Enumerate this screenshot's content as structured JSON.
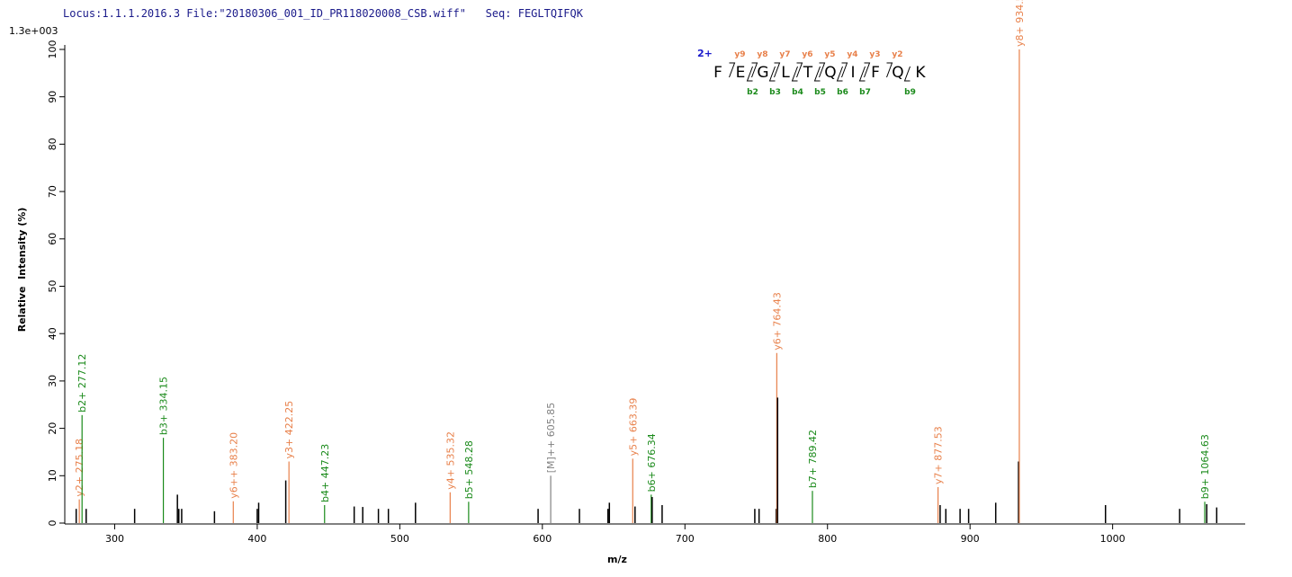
{
  "chart_data": {
    "type": "spectrum",
    "title": "Locus:1.1.1.2016.3 File:\"20180306_001_ID_PR118020008_CSB.wiff\"   Seq: FEGLTQIFQK",
    "scale_label": "1.3e+003",
    "x_label": "m/z",
    "y_label": "Relative  Intensity (%)",
    "xlim": [
      265,
      1093
    ],
    "ylim": [
      0,
      100
    ],
    "xticks": [
      300,
      400,
      500,
      600,
      700,
      800,
      900,
      1000
    ],
    "yticks": [
      0,
      10,
      20,
      30,
      40,
      50,
      60,
      70,
      80,
      90,
      100
    ],
    "peaks": [
      {
        "mz": 273,
        "intensity": 3,
        "color": "#000000"
      },
      {
        "mz": 275.18,
        "intensity": 5,
        "color": "#e8804a",
        "label": "y2+ 275.18"
      },
      {
        "mz": 277.12,
        "intensity": 22.8,
        "color": "#1a8a1a",
        "label": "b2+ 277.12"
      },
      {
        "mz": 280,
        "intensity": 3,
        "color": "#000000"
      },
      {
        "mz": 314,
        "intensity": 3,
        "color": "#000000"
      },
      {
        "mz": 334.15,
        "intensity": 18,
        "color": "#1a8a1a",
        "label": "b3+ 334.15"
      },
      {
        "mz": 344,
        "intensity": 6,
        "color": "#000000"
      },
      {
        "mz": 345,
        "intensity": 3,
        "color": "#000000"
      },
      {
        "mz": 347,
        "intensity": 3,
        "color": "#000000"
      },
      {
        "mz": 370,
        "intensity": 2.5,
        "color": "#000000"
      },
      {
        "mz": 383.2,
        "intensity": 4.6,
        "color": "#e8804a",
        "label": "y6++ 383.20"
      },
      {
        "mz": 400,
        "intensity": 3,
        "color": "#000000"
      },
      {
        "mz": 401,
        "intensity": 4.3,
        "color": "#000000"
      },
      {
        "mz": 420,
        "intensity": 9,
        "color": "#000000"
      },
      {
        "mz": 422.25,
        "intensity": 13,
        "color": "#e8804a",
        "label": "y3+ 422.25"
      },
      {
        "mz": 447.23,
        "intensity": 3.8,
        "color": "#1a8a1a",
        "label": "b4+ 447.23"
      },
      {
        "mz": 468,
        "intensity": 3.5,
        "color": "#000000"
      },
      {
        "mz": 474,
        "intensity": 3.4,
        "color": "#000000"
      },
      {
        "mz": 485,
        "intensity": 3,
        "color": "#000000"
      },
      {
        "mz": 492,
        "intensity": 3,
        "color": "#000000"
      },
      {
        "mz": 511,
        "intensity": 4.3,
        "color": "#000000"
      },
      {
        "mz": 535.32,
        "intensity": 6.5,
        "color": "#e8804a",
        "label": "y4+ 535.32"
      },
      {
        "mz": 548.28,
        "intensity": 4.5,
        "color": "#1a8a1a",
        "label": "b5+ 548.28"
      },
      {
        "mz": 597,
        "intensity": 3,
        "color": "#000000"
      },
      {
        "mz": 605.85,
        "intensity": 10,
        "color": "#808080",
        "label": "[M]++ 605.85"
      },
      {
        "mz": 626,
        "intensity": 3,
        "color": "#000000"
      },
      {
        "mz": 646,
        "intensity": 3,
        "color": "#000000"
      },
      {
        "mz": 647,
        "intensity": 4.3,
        "color": "#000000"
      },
      {
        "mz": 663.39,
        "intensity": 13.6,
        "color": "#e8804a",
        "label": "y5+ 663.39"
      },
      {
        "mz": 665,
        "intensity": 3.5,
        "color": "#000000"
      },
      {
        "mz": 676.34,
        "intensity": 6,
        "color": "#1a8a1a",
        "label": "b6+ 676.34"
      },
      {
        "mz": 677,
        "intensity": 5.5,
        "color": "#000000"
      },
      {
        "mz": 684,
        "intensity": 3.8,
        "color": "#000000"
      },
      {
        "mz": 749,
        "intensity": 3,
        "color": "#000000"
      },
      {
        "mz": 752,
        "intensity": 3,
        "color": "#000000"
      },
      {
        "mz": 764,
        "intensity": 3,
        "color": "#000000"
      },
      {
        "mz": 764.43,
        "intensity": 35.9,
        "color": "#e8804a",
        "label": "y6+ 764.43"
      },
      {
        "mz": 765,
        "intensity": 26.5,
        "color": "#000000"
      },
      {
        "mz": 789.42,
        "intensity": 6.8,
        "color": "#1a8a1a",
        "label": "b7+ 789.42"
      },
      {
        "mz": 877.53,
        "intensity": 7.6,
        "color": "#e8804a",
        "label": "y7+ 877.53"
      },
      {
        "mz": 879,
        "intensity": 3.8,
        "color": "#000000"
      },
      {
        "mz": 883,
        "intensity": 3,
        "color": "#000000"
      },
      {
        "mz": 893,
        "intensity": 3,
        "color": "#000000"
      },
      {
        "mz": 899,
        "intensity": 3,
        "color": "#000000"
      },
      {
        "mz": 918,
        "intensity": 4.3,
        "color": "#000000"
      },
      {
        "mz": 934,
        "intensity": 13,
        "color": "#000000"
      },
      {
        "mz": 934.55,
        "intensity": 100,
        "color": "#e8804a",
        "label": "y8+ 934.55"
      },
      {
        "mz": 995,
        "intensity": 3.8,
        "color": "#000000"
      },
      {
        "mz": 1047,
        "intensity": 3,
        "color": "#000000"
      },
      {
        "mz": 1064.63,
        "intensity": 4.5,
        "color": "#1a8a1a",
        "label": "b9+ 1064.63"
      },
      {
        "mz": 1066,
        "intensity": 4,
        "color": "#000000"
      },
      {
        "mz": 1073,
        "intensity": 3.3,
        "color": "#000000"
      }
    ],
    "fragment_map": {
      "charge": "2+",
      "sequence": [
        "F",
        "E",
        "G",
        "L",
        "T",
        "Q",
        "I",
        "F",
        "Q",
        "K"
      ],
      "y_ions": [
        "y9",
        "y8",
        "y7",
        "y6",
        "y5",
        "y4",
        "y3",
        "y2"
      ],
      "y_positions": [
        1,
        2,
        3,
        4,
        5,
        6,
        7,
        8
      ],
      "b_ions": [
        "b2",
        "b3",
        "b4",
        "b5",
        "b6",
        "b7",
        "b9"
      ],
      "b_positions": [
        2,
        3,
        4,
        5,
        6,
        7,
        9
      ]
    }
  }
}
